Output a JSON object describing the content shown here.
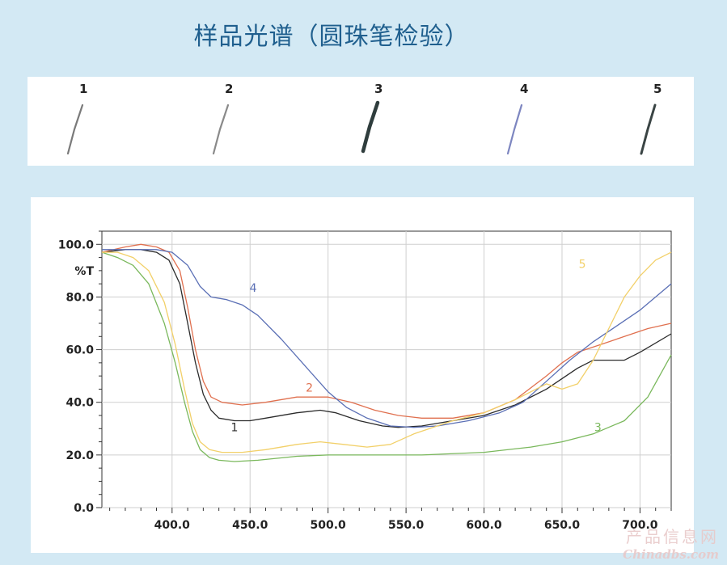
{
  "page_title": "样品光谱（圆珠笔检验）",
  "samples": [
    {
      "label": "1",
      "color": "#7a7a7a",
      "weight": 2.2
    },
    {
      "label": "2",
      "color": "#8a8a8a",
      "weight": 2.2
    },
    {
      "label": "3",
      "color": "#2f3d3d",
      "weight": 4.5
    },
    {
      "label": "4",
      "color": "#7d86c0",
      "weight": 2.2
    },
    {
      "label": "5",
      "color": "#3a4444",
      "weight": 3.0
    }
  ],
  "chart_data": {
    "type": "line",
    "title": "",
    "xlabel": "",
    "ylabel": "%T",
    "xlim": [
      355,
      720
    ],
    "ylim": [
      0,
      105
    ],
    "x_ticks": [
      400,
      450,
      500,
      550,
      600,
      650,
      700
    ],
    "x_tick_labels": [
      "400.0",
      "450.0",
      "500.0",
      "550.0",
      "600.0",
      "650.0",
      "700.0"
    ],
    "y_ticks": [
      0,
      20,
      40,
      60,
      80,
      100
    ],
    "y_tick_labels": [
      "0.0",
      "20.0",
      "40.0",
      "60.0",
      "80.0",
      "100.0"
    ],
    "grid": true,
    "series": [
      {
        "name": "1",
        "color": "#2b2b2b",
        "points": [
          [
            355,
            97
          ],
          [
            370,
            98
          ],
          [
            380,
            98
          ],
          [
            390,
            97
          ],
          [
            398,
            94
          ],
          [
            405,
            85
          ],
          [
            410,
            70
          ],
          [
            415,
            55
          ],
          [
            420,
            43
          ],
          [
            425,
            37
          ],
          [
            430,
            34
          ],
          [
            440,
            33
          ],
          [
            450,
            33
          ],
          [
            460,
            34
          ],
          [
            480,
            36
          ],
          [
            495,
            37
          ],
          [
            505,
            36
          ],
          [
            520,
            33
          ],
          [
            535,
            31
          ],
          [
            545,
            30.5
          ],
          [
            560,
            31
          ],
          [
            580,
            33
          ],
          [
            600,
            35
          ],
          [
            620,
            39
          ],
          [
            640,
            45
          ],
          [
            650,
            49
          ],
          [
            660,
            53
          ],
          [
            670,
            56
          ],
          [
            690,
            56
          ],
          [
            700,
            59
          ],
          [
            720,
            66
          ]
        ]
      },
      {
        "name": "2",
        "color": "#e0704f",
        "points": [
          [
            355,
            97
          ],
          [
            370,
            99
          ],
          [
            380,
            100
          ],
          [
            390,
            99
          ],
          [
            398,
            97
          ],
          [
            405,
            90
          ],
          [
            410,
            76
          ],
          [
            415,
            60
          ],
          [
            420,
            48
          ],
          [
            425,
            42
          ],
          [
            432,
            40
          ],
          [
            445,
            39
          ],
          [
            460,
            40
          ],
          [
            480,
            42
          ],
          [
            500,
            42
          ],
          [
            515,
            40
          ],
          [
            530,
            37
          ],
          [
            545,
            35
          ],
          [
            560,
            34
          ],
          [
            580,
            34
          ],
          [
            600,
            36
          ],
          [
            620,
            41
          ],
          [
            640,
            50
          ],
          [
            650,
            55
          ],
          [
            660,
            59
          ],
          [
            675,
            62
          ],
          [
            690,
            65
          ],
          [
            705,
            68
          ],
          [
            720,
            70
          ]
        ]
      },
      {
        "name": "3",
        "color": "#7ab85c",
        "points": [
          [
            355,
            97
          ],
          [
            365,
            95
          ],
          [
            375,
            92
          ],
          [
            385,
            85
          ],
          [
            395,
            70
          ],
          [
            402,
            55
          ],
          [
            408,
            40
          ],
          [
            413,
            29
          ],
          [
            418,
            22
          ],
          [
            424,
            19
          ],
          [
            430,
            18
          ],
          [
            440,
            17.5
          ],
          [
            455,
            18
          ],
          [
            480,
            19.5
          ],
          [
            500,
            20
          ],
          [
            530,
            20
          ],
          [
            560,
            20
          ],
          [
            600,
            21
          ],
          [
            630,
            23
          ],
          [
            650,
            25
          ],
          [
            670,
            28
          ],
          [
            690,
            33
          ],
          [
            705,
            42
          ],
          [
            720,
            58
          ]
        ]
      },
      {
        "name": "4",
        "color": "#5a6fb5",
        "points": [
          [
            355,
            98
          ],
          [
            370,
            98
          ],
          [
            390,
            98
          ],
          [
            400,
            97
          ],
          [
            410,
            92
          ],
          [
            418,
            84
          ],
          [
            425,
            80
          ],
          [
            435,
            79
          ],
          [
            445,
            77
          ],
          [
            455,
            73
          ],
          [
            470,
            64
          ],
          [
            485,
            54
          ],
          [
            500,
            44
          ],
          [
            512,
            38
          ],
          [
            525,
            34
          ],
          [
            540,
            31
          ],
          [
            555,
            30.5
          ],
          [
            570,
            31
          ],
          [
            590,
            33
          ],
          [
            610,
            36
          ],
          [
            625,
            40
          ],
          [
            640,
            48
          ],
          [
            655,
            56
          ],
          [
            670,
            63
          ],
          [
            685,
            69
          ],
          [
            700,
            75
          ],
          [
            720,
            85
          ]
        ]
      },
      {
        "name": "5",
        "color": "#f2d069",
        "points": [
          [
            355,
            97
          ],
          [
            365,
            97
          ],
          [
            375,
            95
          ],
          [
            385,
            90
          ],
          [
            395,
            78
          ],
          [
            402,
            62
          ],
          [
            408,
            45
          ],
          [
            413,
            32
          ],
          [
            418,
            25
          ],
          [
            424,
            22
          ],
          [
            432,
            21
          ],
          [
            445,
            21
          ],
          [
            460,
            22
          ],
          [
            480,
            24
          ],
          [
            495,
            25
          ],
          [
            510,
            24
          ],
          [
            525,
            23
          ],
          [
            540,
            24
          ],
          [
            555,
            28
          ],
          [
            580,
            33
          ],
          [
            600,
            36
          ],
          [
            620,
            41
          ],
          [
            640,
            47
          ],
          [
            650,
            45
          ],
          [
            660,
            47
          ],
          [
            670,
            56
          ],
          [
            680,
            68
          ],
          [
            690,
            80
          ],
          [
            700,
            88
          ],
          [
            710,
            94
          ],
          [
            720,
            97
          ]
        ]
      }
    ],
    "annotations": [
      {
        "text": "1",
        "x": 440,
        "y": 29,
        "color": "#2b2b2b"
      },
      {
        "text": "2",
        "x": 488,
        "y": 44,
        "color": "#e0704f"
      },
      {
        "text": "3",
        "x": 673,
        "y": 29,
        "color": "#7ab85c"
      },
      {
        "text": "4",
        "x": 452,
        "y": 82,
        "color": "#5a6fb5"
      },
      {
        "text": "5",
        "x": 663,
        "y": 91,
        "color": "#f2d069"
      }
    ]
  },
  "watermark": {
    "line1": "产品信息网",
    "line2": "Chinadbs.com"
  }
}
